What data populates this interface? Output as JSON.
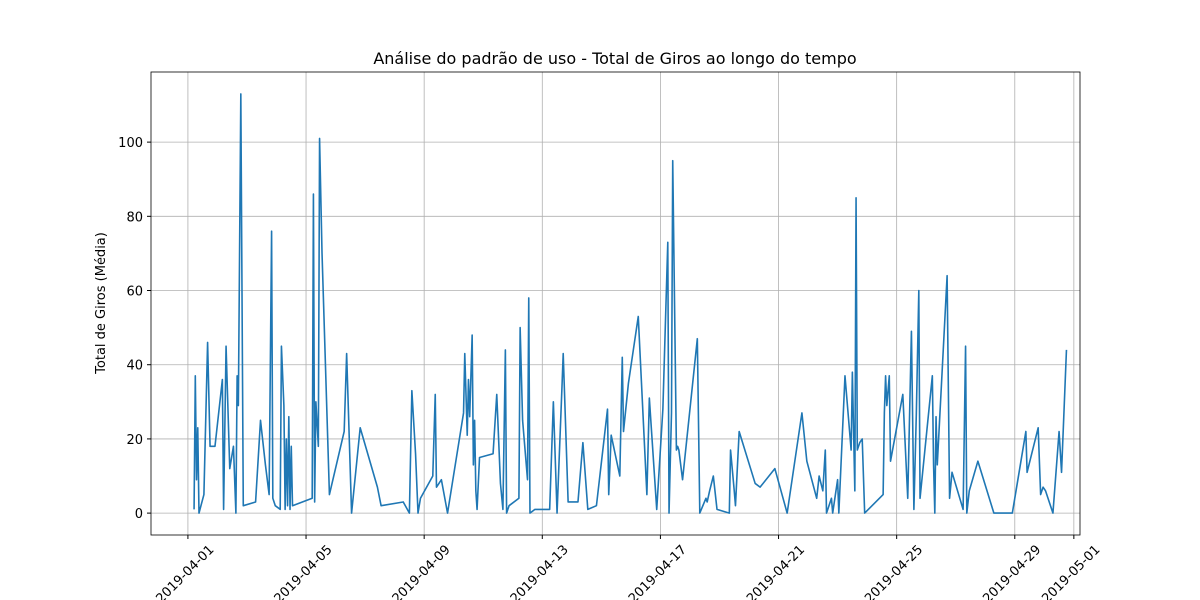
{
  "chart_data": {
    "type": "line",
    "title": "Análise do padrão de uso - Total de Giros ao longo do tempo",
    "ylabel": "Total de Giros (Média)",
    "color": "#1f77b4",
    "grid": true,
    "xlim": [
      "2019-03-30 18:00",
      "2019-05-01 05:00"
    ],
    "xticks": [
      "2019-04-01",
      "2019-04-05",
      "2019-04-09",
      "2019-04-13",
      "2019-04-17",
      "2019-04-21",
      "2019-04-25",
      "2019-04-29",
      "2019-05-01"
    ],
    "ylim": [
      -5.9,
      118.9
    ],
    "yticks": [
      0,
      20,
      40,
      60,
      80,
      100
    ],
    "x": [
      "2019-04-01 05:00",
      "2019-04-01 06:00",
      "2019-04-01 07:00",
      "2019-04-01 08:00",
      "2019-04-01 09:00",
      "2019-04-01 13:00",
      "2019-04-01 16:00",
      "2019-04-01 18:00",
      "2019-04-01 22:00",
      "2019-04-02 04:00",
      "2019-04-02 05:00",
      "2019-04-02 07:00",
      "2019-04-02 10:00",
      "2019-04-02 13:00",
      "2019-04-02 15:00",
      "2019-04-02 16:00",
      "2019-04-02 17:00",
      "2019-04-02 19:00",
      "2019-04-02 21:00",
      "2019-04-03 07:00",
      "2019-04-03 11:00",
      "2019-04-03 15:00",
      "2019-04-03 18:00",
      "2019-04-03 20:00",
      "2019-04-03 21:00",
      "2019-04-03 23:00",
      "2019-04-04 03:00",
      "2019-04-04 04:00",
      "2019-04-04 06:00",
      "2019-04-04 07:00",
      "2019-04-04 08:00",
      "2019-04-04 09:00",
      "2019-04-04 10:00",
      "2019-04-04 11:00",
      "2019-04-04 12:00",
      "2019-04-04 13:00",
      "2019-04-05 05:00",
      "2019-04-05 06:00",
      "2019-04-05 07:00",
      "2019-04-05 08:00",
      "2019-04-05 10:00",
      "2019-04-05 11:00",
      "2019-04-05 13:00",
      "2019-04-05 19:00",
      "2019-04-06 07:00",
      "2019-04-06 09:00",
      "2019-04-06 13:00",
      "2019-04-06 20:00",
      "2019-04-07 10:00",
      "2019-04-07 13:00",
      "2019-04-08 07:00",
      "2019-04-08 12:00",
      "2019-04-08 14:00",
      "2019-04-08 17:00",
      "2019-04-08 19:00",
      "2019-04-08 21:00",
      "2019-04-09 07:00",
      "2019-04-09 09:00",
      "2019-04-09 10:00",
      "2019-04-09 14:00",
      "2019-04-09 19:00",
      "2019-04-10 08:00",
      "2019-04-10 09:00",
      "2019-04-10 11:00",
      "2019-04-10 12:00",
      "2019-04-10 13:00",
      "2019-04-10 15:00",
      "2019-04-10 16:00",
      "2019-04-10 17:00",
      "2019-04-10 18:00",
      "2019-04-10 19:00",
      "2019-04-10 21:00",
      "2019-04-11 08:00",
      "2019-04-11 11:00",
      "2019-04-11 14:00",
      "2019-04-11 16:00",
      "2019-04-11 18:00",
      "2019-04-11 19:00",
      "2019-04-11 21:00",
      "2019-04-12 05:00",
      "2019-04-12 06:00",
      "2019-04-12 08:00",
      "2019-04-12 12:00",
      "2019-04-12 13:00",
      "2019-04-12 14:00",
      "2019-04-12 18:00",
      "2019-04-13 06:00",
      "2019-04-13 09:00",
      "2019-04-13 12:00",
      "2019-04-13 16:00",
      "2019-04-13 17:00",
      "2019-04-13 21:00",
      "2019-04-14 05:00",
      "2019-04-14 09:00",
      "2019-04-14 13:00",
      "2019-04-14 20:00",
      "2019-04-15 05:00",
      "2019-04-15 06:00",
      "2019-04-15 08:00",
      "2019-04-15 15:00",
      "2019-04-15 17:00",
      "2019-04-15 18:00",
      "2019-04-15 22:00",
      "2019-04-16 06:00",
      "2019-04-16 13:00",
      "2019-04-16 15:00",
      "2019-04-16 21:00",
      "2019-04-17 02:00",
      "2019-04-17 06:00",
      "2019-04-17 07:00",
      "2019-04-17 09:00",
      "2019-04-17 10:00",
      "2019-04-17 13:00",
      "2019-04-17 14:00",
      "2019-04-17 15:00",
      "2019-04-17 18:00",
      "2019-04-18 06:00",
      "2019-04-18 08:00",
      "2019-04-18 13:00",
      "2019-04-18 14:00",
      "2019-04-18 16:00",
      "2019-04-18 19:00",
      "2019-04-18 22:00",
      "2019-04-19 08:00",
      "2019-04-19 09:00",
      "2019-04-19 12:00",
      "2019-04-19 13:00",
      "2019-04-19 16:00",
      "2019-04-20 05:00",
      "2019-04-20 09:00",
      "2019-04-20 21:00",
      "2019-04-21 07:00",
      "2019-04-21 19:00",
      "2019-04-21 23:00",
      "2019-04-22 07:00",
      "2019-04-22 09:00",
      "2019-04-22 12:00",
      "2019-04-22 14:00",
      "2019-04-22 15:00",
      "2019-04-22 19:00",
      "2019-04-22 20:00",
      "2019-04-23 00:00",
      "2019-04-23 01:00",
      "2019-04-23 06:00",
      "2019-04-23 11:00",
      "2019-04-23 12:00",
      "2019-04-23 14:00",
      "2019-04-23 15:00",
      "2019-04-23 16:00",
      "2019-04-23 18:00",
      "2019-04-23 20:00",
      "2019-04-23 22:00",
      "2019-04-24 13:00",
      "2019-04-24 14:00",
      "2019-04-24 15:00",
      "2019-04-24 16:00",
      "2019-04-24 18:00",
      "2019-04-24 19:00",
      "2019-04-25 05:00",
      "2019-04-25 09:00",
      "2019-04-25 12:00",
      "2019-04-25 14:00",
      "2019-04-25 16:00",
      "2019-04-25 18:00",
      "2019-04-25 19:00",
      "2019-04-26 05:00",
      "2019-04-26 06:00",
      "2019-04-26 07:00",
      "2019-04-26 08:00",
      "2019-04-26 09:00",
      "2019-04-26 17:00",
      "2019-04-26 19:00",
      "2019-04-26 21:00",
      "2019-04-27 06:00",
      "2019-04-27 08:00",
      "2019-04-27 09:00",
      "2019-04-27 11:00",
      "2019-04-27 18:00",
      "2019-04-28 07:00",
      "2019-04-28 22:00",
      "2019-04-29 09:00",
      "2019-04-29 10:00",
      "2019-04-29 19:00",
      "2019-04-29 21:00",
      "2019-04-29 23:00",
      "2019-04-30 01:00",
      "2019-04-30 07:00",
      "2019-04-30 12:00",
      "2019-04-30 14:00",
      "2019-04-30 18:00"
    ],
    "values": [
      1,
      37,
      9,
      23,
      0,
      5,
      46,
      18,
      18,
      36,
      1,
      45,
      12,
      18,
      0,
      37,
      29,
      113,
      2,
      3,
      25,
      13,
      5,
      76,
      4,
      2,
      1,
      45,
      29,
      1,
      20,
      2,
      26,
      1,
      18,
      2,
      4,
      86,
      3,
      30,
      18,
      101,
      70,
      5,
      22,
      43,
      0,
      23,
      7,
      2,
      3,
      0,
      33,
      16,
      0,
      4,
      10,
      32,
      7,
      9,
      0,
      27,
      43,
      21,
      36,
      26,
      48,
      13,
      25,
      6,
      1,
      15,
      16,
      32,
      8,
      1,
      44,
      0,
      2,
      4,
      50,
      25,
      9,
      58,
      0,
      1,
      1,
      30,
      0,
      34,
      43,
      3,
      3,
      19,
      1,
      2,
      28,
      5,
      21,
      10,
      42,
      22,
      35,
      53,
      5,
      31,
      1,
      28,
      73,
      0,
      27,
      95,
      17,
      18,
      17,
      9,
      47,
      0,
      4,
      3,
      6,
      10,
      1,
      0,
      17,
      6,
      2,
      22,
      8,
      7,
      12,
      0,
      27,
      14,
      4,
      10,
      6,
      17,
      0,
      4,
      0,
      9,
      0,
      37,
      17,
      38,
      6,
      85,
      17,
      19,
      20,
      0,
      5,
      27,
      37,
      29,
      37,
      14,
      32,
      4,
      49,
      1,
      27,
      60,
      4,
      37,
      13,
      0,
      26,
      13,
      64,
      4,
      11,
      1,
      45,
      0,
      6,
      14,
      0,
      0,
      22,
      11,
      23,
      5,
      7,
      6,
      0,
      22,
      11,
      44
    ]
  }
}
